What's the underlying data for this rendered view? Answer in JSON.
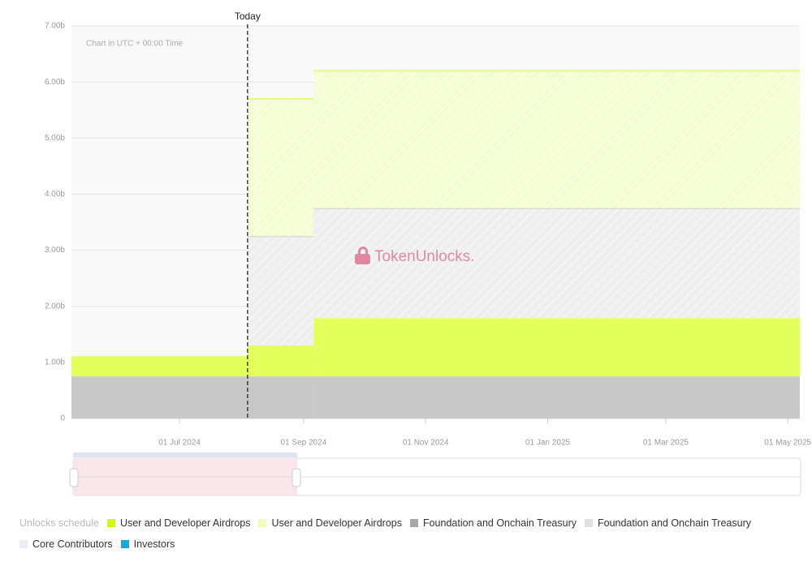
{
  "chart_data": {
    "type": "step-area",
    "annotation": "Chart in UTC + 00:00 Time",
    "watermark": "TokenUnlocks.",
    "today": {
      "value": "2024-08-04",
      "label": "Today"
    },
    "legend_title": "Unlocks schedule",
    "x": [
      "2024-05-08",
      "2024-08-04",
      "2024-09-06"
    ],
    "xlim": [
      "2024-05-08",
      "2025-05-07"
    ],
    "xticks": [
      {
        "value": "2024-07-01",
        "label": "01 Jul 2024"
      },
      {
        "value": "2024-09-01",
        "label": "01 Sep 2024"
      },
      {
        "value": "2024-11-01",
        "label": "01 Nov 2024"
      },
      {
        "value": "2025-01-01",
        "label": "01 Jan 2025"
      },
      {
        "value": "2025-03-01",
        "label": "01 Mar 2025"
      },
      {
        "value": "2025-05-01",
        "label": "01 May 2025"
      }
    ],
    "ylim": [
      0,
      7
    ],
    "yticks": [
      0,
      {
        "value": 1,
        "label": "1.00b"
      },
      {
        "value": 2,
        "label": "2.00b"
      },
      {
        "value": 3,
        "label": "3.00b"
      },
      {
        "value": 4,
        "label": "4.00b"
      },
      {
        "value": 5,
        "label": "5.00b"
      },
      {
        "value": 6,
        "label": "6.00b"
      },
      {
        "value": 7,
        "label": "7.00b"
      }
    ],
    "grid": true,
    "series": [
      {
        "name": "User and Developer Airdrops",
        "color": "#e2ff5c",
        "legend_color": "#d6f51f",
        "hatched": false,
        "values": [
          0.36,
          0.55,
          1.04
        ]
      },
      {
        "name": "User and Developer Airdrops",
        "color": "#f3fcd2",
        "legend_color": "#eefcb8",
        "hatched": true,
        "values": [
          null,
          2.45,
          2.45
        ]
      },
      {
        "name": "Foundation and Onchain Treasury",
        "color": "#c8c8c8",
        "legend_color": "#a8a8a8",
        "hatched": false,
        "values": [
          0.75,
          0.75,
          0.75
        ]
      },
      {
        "name": "Foundation and Onchain Treasury",
        "color": "#efefef",
        "legend_color": "#e0e0e0",
        "hatched": true,
        "values": [
          null,
          1.95,
          1.96
        ]
      },
      {
        "name": "Core Contributors",
        "color": "#eeeef8",
        "legend_color": "#ececf8",
        "hatched": false,
        "values": [
          0,
          0,
          0
        ]
      },
      {
        "name": "Investors",
        "color": "#1aa8d8",
        "legend_color": "#1aa8d8",
        "hatched": false,
        "values": [
          0,
          0,
          0
        ]
      }
    ]
  }
}
